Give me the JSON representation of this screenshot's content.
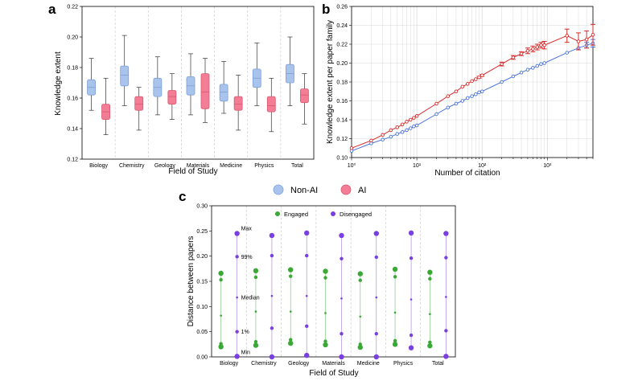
{
  "colors": {
    "nonai_fill": "#a9c4ec",
    "nonai_edge": "#7d9fd6",
    "ai_fill": "#f27d95",
    "ai_edge": "#d9566f",
    "line_nonai": "#4a73d9",
    "line_ai": "#d92b2b",
    "engaged": "#3aa835",
    "disengaged": "#7a3fe0",
    "grid": "#d9d9d9",
    "vsep": "#cfcfcf"
  },
  "legend_main": {
    "nonai": "Non-AI",
    "ai": "AI"
  },
  "panels": {
    "a": "a",
    "b": "b",
    "c": "c"
  },
  "chart_data": [
    {
      "id": "a",
      "type": "box",
      "xlabel": "Field of Study",
      "ylabel": "Knowledge extent",
      "ylim": [
        0.12,
        0.22
      ],
      "yticks": [
        0.12,
        0.14,
        0.16,
        0.18,
        0.2,
        0.22
      ],
      "ytick_labels": [
        "0.12",
        "0.14",
        "0.16",
        "0.18",
        "0.20",
        "0.22"
      ],
      "categories": [
        "Biology",
        "Chemistry",
        "Geology",
        "Materials",
        "Medicine",
        "Physics",
        "Total"
      ],
      "series": [
        {
          "name": "Non-AI",
          "boxes": [
            {
              "min": 0.152,
              "q1": 0.162,
              "med": 0.167,
              "q3": 0.172,
              "max": 0.186
            },
            {
              "min": 0.155,
              "q1": 0.168,
              "med": 0.175,
              "q3": 0.181,
              "max": 0.201
            },
            {
              "min": 0.149,
              "q1": 0.161,
              "med": 0.167,
              "q3": 0.173,
              "max": 0.187
            },
            {
              "min": 0.149,
              "q1": 0.162,
              "med": 0.168,
              "q3": 0.174,
              "max": 0.189
            },
            {
              "min": 0.15,
              "q1": 0.158,
              "med": 0.164,
              "q3": 0.169,
              "max": 0.184
            },
            {
              "min": 0.155,
              "q1": 0.167,
              "med": 0.173,
              "q3": 0.179,
              "max": 0.196
            },
            {
              "min": 0.155,
              "q1": 0.17,
              "med": 0.176,
              "q3": 0.182,
              "max": 0.2
            }
          ]
        },
        {
          "name": "AI",
          "boxes": [
            {
              "min": 0.136,
              "q1": 0.146,
              "med": 0.151,
              "q3": 0.156,
              "max": 0.173
            },
            {
              "min": 0.139,
              "q1": 0.152,
              "med": 0.156,
              "q3": 0.161,
              "max": 0.167
            },
            {
              "min": 0.146,
              "q1": 0.156,
              "med": 0.161,
              "q3": 0.165,
              "max": 0.176
            },
            {
              "min": 0.144,
              "q1": 0.153,
              "med": 0.164,
              "q3": 0.176,
              "max": 0.186
            },
            {
              "min": 0.139,
              "q1": 0.152,
              "med": 0.156,
              "q3": 0.161,
              "max": 0.175
            },
            {
              "min": 0.138,
              "q1": 0.151,
              "med": 0.155,
              "q3": 0.161,
              "max": 0.173
            },
            {
              "min": 0.143,
              "q1": 0.157,
              "med": 0.162,
              "q3": 0.166,
              "max": 0.176
            }
          ]
        }
      ]
    },
    {
      "id": "b",
      "type": "line",
      "xscale": "log",
      "xlabel": "Number of citation",
      "ylabel": "Knowledge extent per paper family",
      "xlim": [
        1,
        5000
      ],
      "ylim": [
        0.1,
        0.26
      ],
      "xtick_labels": [
        "10⁰",
        "10¹",
        "10²",
        "10³"
      ],
      "ytick_labels": [
        "0.10",
        "0.12",
        "0.14",
        "0.16",
        "0.18",
        "0.20",
        "0.22",
        "0.24",
        "0.26"
      ],
      "grid": true,
      "series": [
        {
          "name": "Non-AI",
          "x": [
            1,
            2,
            3,
            4,
            5,
            6,
            7,
            8,
            9,
            10,
            20,
            30,
            40,
            50,
            60,
            70,
            80,
            90,
            100,
            200,
            300,
            400,
            500,
            600,
            700,
            800,
            900,
            2000,
            3000,
            4000,
            5000
          ],
          "y": [
            0.107,
            0.115,
            0.119,
            0.122,
            0.125,
            0.127,
            0.129,
            0.131,
            0.133,
            0.134,
            0.146,
            0.153,
            0.157,
            0.16,
            0.163,
            0.165,
            0.167,
            0.169,
            0.17,
            0.18,
            0.186,
            0.19,
            0.193,
            0.195,
            0.197,
            0.199,
            0.2,
            0.211,
            0.216,
            0.219,
            0.221
          ],
          "err": [
            0,
            0,
            0,
            0,
            0,
            0,
            0,
            0,
            0,
            0,
            0,
            0,
            0,
            0,
            0,
            0,
            0,
            0,
            0,
            0,
            0,
            0,
            0,
            0,
            0,
            0,
            0,
            0,
            0,
            0.003,
            0.004
          ]
        },
        {
          "name": "AI",
          "x": [
            1,
            2,
            3,
            4,
            5,
            6,
            7,
            8,
            9,
            10,
            20,
            30,
            40,
            50,
            60,
            70,
            80,
            90,
            100,
            200,
            300,
            400,
            500,
            600,
            700,
            800,
            900,
            2000,
            3000,
            4000,
            5000
          ],
          "y": [
            0.11,
            0.118,
            0.124,
            0.129,
            0.132,
            0.135,
            0.138,
            0.14,
            0.142,
            0.144,
            0.157,
            0.165,
            0.17,
            0.175,
            0.178,
            0.181,
            0.183,
            0.185,
            0.187,
            0.199,
            0.206,
            0.21,
            0.213,
            0.215,
            0.217,
            0.219,
            0.219,
            0.229,
            0.223,
            0.225,
            0.23
          ],
          "err": [
            0,
            0,
            0,
            0,
            0,
            0,
            0,
            0,
            0,
            0,
            0,
            0,
            0,
            0,
            0,
            0,
            0,
            0.001,
            0.001,
            0.002,
            0.002,
            0.002,
            0.003,
            0.003,
            0.003,
            0.003,
            0.004,
            0.007,
            0.009,
            0.009,
            0.011
          ]
        }
      ]
    },
    {
      "id": "c",
      "type": "dot-range",
      "xlabel": "Field of Study",
      "ylabel": "Distance between papers",
      "ylim": [
        0.0,
        0.3
      ],
      "ytick_labels": [
        "0.00",
        "0.05",
        "0.10",
        "0.15",
        "0.20",
        "0.25",
        "0.30"
      ],
      "categories": [
        "Biology",
        "Chemistry",
        "Geology",
        "Materials",
        "Medicine",
        "Physics",
        "Total"
      ],
      "legend": {
        "engaged": "Engaged",
        "disengaged": "Disengaged"
      },
      "annotations": [
        "Max",
        "99%",
        "Median",
        "1%",
        "Min"
      ],
      "stats_order": [
        "min",
        "p1",
        "median",
        "p99",
        "max"
      ],
      "series": [
        {
          "name": "Engaged",
          "values": [
            [
              0.02,
              0.026,
              0.082,
              0.153,
              0.166
            ],
            [
              0.023,
              0.03,
              0.09,
              0.158,
              0.171
            ],
            [
              0.027,
              0.034,
              0.09,
              0.16,
              0.173
            ],
            [
              0.024,
              0.031,
              0.087,
              0.157,
              0.17
            ],
            [
              0.019,
              0.025,
              0.08,
              0.152,
              0.165
            ],
            [
              0.025,
              0.032,
              0.088,
              0.159,
              0.174
            ],
            [
              0.022,
              0.029,
              0.085,
              0.155,
              0.168
            ]
          ]
        },
        {
          "name": "Disengaged",
          "values": [
            [
              0.001,
              0.05,
              0.118,
              0.199,
              0.245
            ],
            [
              0.0,
              0.057,
              0.121,
              0.201,
              0.241
            ],
            [
              0.003,
              0.061,
              0.121,
              0.201,
              0.246
            ],
            [
              0.0,
              0.046,
              0.116,
              0.195,
              0.241
            ],
            [
              0.0,
              0.046,
              0.118,
              0.198,
              0.245
            ],
            [
              0.018,
              0.043,
              0.114,
              0.196,
              0.246
            ],
            [
              0.001,
              0.052,
              0.119,
              0.197,
              0.245
            ]
          ]
        }
      ]
    }
  ]
}
